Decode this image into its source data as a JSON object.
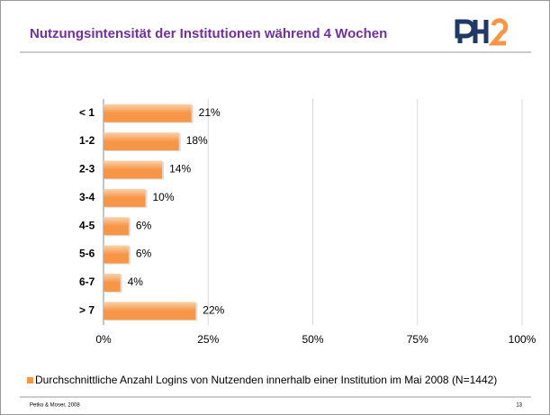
{
  "chart_data": {
    "type": "bar",
    "orientation": "horizontal",
    "title": "Nutzungsintensität der Institutionen während 4 Wochen",
    "categories": [
      "< 1",
      "1-2",
      "2-3",
      "3-4",
      "4-5",
      "5-6",
      "6-7",
      "> 7"
    ],
    "series": [
      {
        "name": "Durchschnittliche Anzahl Logins von Nutzenden innerhalb einer Institution im Mai 2008 (N=1442)",
        "color": "#f79646",
        "values": [
          21,
          18,
          14,
          10,
          6,
          6,
          4,
          22
        ],
        "value_labels": [
          "21%",
          "18%",
          "14%",
          "10%",
          "6%",
          "6%",
          "4%",
          "22%"
        ]
      }
    ],
    "xlim": [
      0,
      100
    ],
    "xticks": [
      {
        "value": 0,
        "label": "0%"
      },
      {
        "value": 25,
        "label": "25%"
      },
      {
        "value": 50,
        "label": "50%"
      },
      {
        "value": 75,
        "label": "75%"
      },
      {
        "value": 100,
        "label": "100%"
      }
    ],
    "grid": true,
    "legend": "bottom-left",
    "footer_left": "Petko & Moser, 2008",
    "footer_right": "13"
  }
}
